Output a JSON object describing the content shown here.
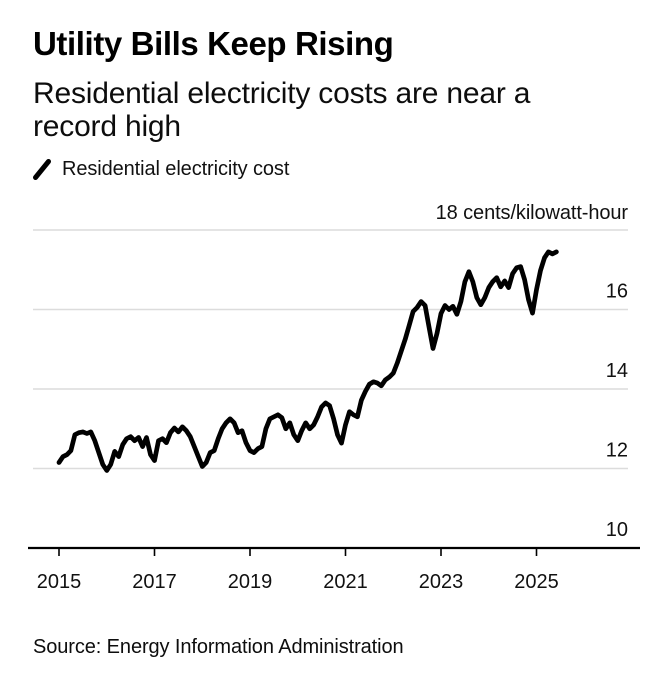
{
  "header": {
    "title": "Utility Bills Keep Rising",
    "subtitle": "Residential electricity costs are near a record high"
  },
  "legend": {
    "marker": "slash-icon",
    "label": "Residential electricity cost",
    "marker_color": "#000000"
  },
  "source": {
    "text": "Source: Energy Information Administration"
  },
  "chart_data": {
    "type": "line",
    "title": "Utility Bills Keep Rising",
    "subtitle": "Residential electricity costs are near a record high",
    "unit_label": "18 cents/kilowatt-hour",
    "ylabel": "cents/kilowatt-hour",
    "xlabel": "",
    "ylim": [
      10,
      18
    ],
    "xlim": [
      2014.5,
      2027
    ],
    "grid": true,
    "legend_position": "top-left",
    "x_tick_years": [
      2015,
      2017,
      2019,
      2021,
      2023,
      2025
    ],
    "y_gridline_values": [
      12,
      14,
      16,
      18
    ],
    "y_tick_labels": [
      16,
      14,
      12,
      10
    ],
    "baseline_value": 10,
    "line_color": "#000000",
    "grid_color": "#dcdcdc",
    "axis_color": "#000000",
    "series": [
      {
        "name": "Residential electricity cost",
        "frequency": "monthly",
        "start": "2015-01",
        "end": "2025-06",
        "values": [
          12.15,
          12.3,
          12.35,
          12.45,
          12.85,
          12.9,
          12.92,
          12.88,
          12.92,
          12.7,
          12.4,
          12.1,
          11.95,
          12.1,
          12.43,
          12.3,
          12.6,
          12.75,
          12.8,
          12.7,
          12.78,
          12.55,
          12.78,
          12.35,
          12.2,
          12.7,
          12.75,
          12.65,
          12.9,
          13.02,
          12.92,
          13.05,
          12.95,
          12.8,
          12.55,
          12.3,
          12.05,
          12.15,
          12.4,
          12.45,
          12.75,
          13.0,
          13.15,
          13.25,
          13.15,
          12.9,
          12.95,
          12.65,
          12.45,
          12.4,
          12.5,
          12.55,
          13.0,
          13.25,
          13.3,
          13.35,
          13.28,
          13.0,
          13.15,
          12.85,
          12.7,
          12.95,
          13.15,
          13.0,
          13.1,
          13.3,
          13.55,
          13.65,
          13.58,
          13.25,
          12.85,
          12.64,
          13.1,
          13.43,
          13.35,
          13.3,
          13.72,
          13.94,
          14.12,
          14.18,
          14.15,
          14.08,
          14.23,
          14.3,
          14.4,
          14.65,
          14.95,
          15.25,
          15.6,
          15.95,
          16.05,
          16.2,
          16.1,
          15.55,
          15.02,
          15.4,
          15.9,
          16.1,
          16.0,
          16.08,
          15.88,
          16.2,
          16.7,
          16.95,
          16.7,
          16.3,
          16.12,
          16.3,
          16.55,
          16.7,
          16.8,
          16.57,
          16.72,
          16.55,
          16.9,
          17.05,
          17.08,
          16.75,
          16.25,
          15.91,
          16.5,
          16.98,
          17.3,
          17.45,
          17.4,
          17.45
        ]
      }
    ]
  }
}
